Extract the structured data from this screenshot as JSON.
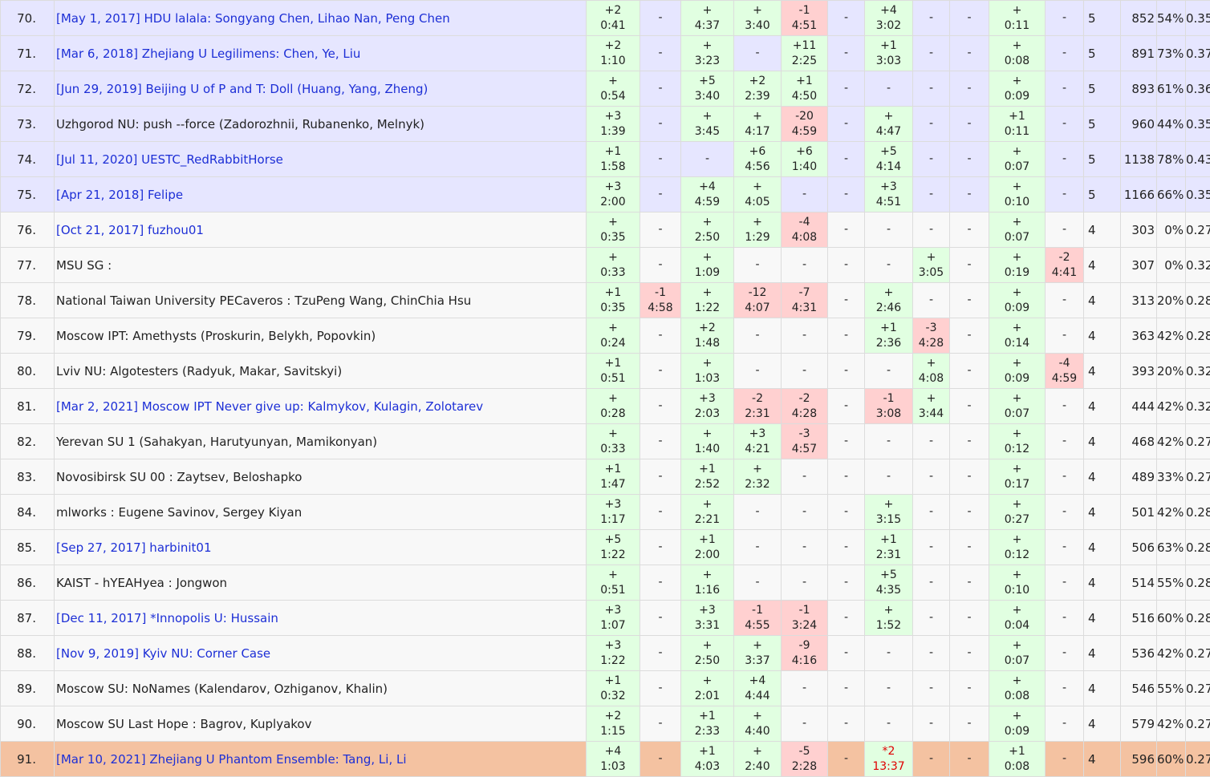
{
  "colors": {
    "link": "#1d2fd6",
    "accepted_bg": "#e1ffe1",
    "wrong_bg": "#ffd0d0",
    "pending_text": "#e00000",
    "past_virtual_row_bg": "#e6e6ff",
    "plain_row_bg": "#f8f8f8",
    "current_team_row_bg": "#f4c2a1"
  },
  "rows": [
    {
      "rank": "70.",
      "team": "[May 1, 2017] HDU lalala: Songyang Chen, Lihao Nan, Peng Chen",
      "link": true,
      "style": "hl",
      "problems": [
        [
          "+2",
          "0:41"
        ],
        [
          "-",
          ""
        ],
        [
          "+",
          "4:37"
        ],
        [
          "+",
          "3:40"
        ],
        [
          "-1",
          "4:51"
        ],
        [
          "-",
          ""
        ],
        [
          "+4",
          "3:02"
        ],
        [
          "-",
          ""
        ],
        [
          "-",
          ""
        ],
        [
          "+",
          "0:11"
        ],
        [
          "-",
          ""
        ]
      ],
      "solved": "5",
      "penalty": "852",
      "pct": "54%",
      "score": "0.35"
    },
    {
      "rank": "71.",
      "team": "[Mar 6, 2018] Zhejiang U Legilimens: Chen, Ye, Liu",
      "link": true,
      "style": "hl",
      "problems": [
        [
          "+2",
          "1:10"
        ],
        [
          "-",
          ""
        ],
        [
          "+",
          "3:23"
        ],
        [
          "-",
          ""
        ],
        [
          "+11",
          "2:25"
        ],
        [
          "-",
          ""
        ],
        [
          "+1",
          "3:03"
        ],
        [
          "-",
          ""
        ],
        [
          "-",
          ""
        ],
        [
          "+",
          "0:08"
        ],
        [
          "-",
          ""
        ]
      ],
      "solved": "5",
      "penalty": "891",
      "pct": "73%",
      "score": "0.37"
    },
    {
      "rank": "72.",
      "team": "[Jun 29, 2019] Beijing U of P and T: Doll (Huang, Yang, Zheng)",
      "link": true,
      "style": "hl",
      "problems": [
        [
          "+",
          "0:54"
        ],
        [
          "-",
          ""
        ],
        [
          "+5",
          "3:40"
        ],
        [
          "+2",
          "2:39"
        ],
        [
          "+1",
          "4:50"
        ],
        [
          "-",
          ""
        ],
        [
          "-",
          ""
        ],
        [
          "-",
          ""
        ],
        [
          "-",
          ""
        ],
        [
          "+",
          "0:09"
        ],
        [
          "-",
          ""
        ]
      ],
      "solved": "5",
      "penalty": "893",
      "pct": "61%",
      "score": "0.36"
    },
    {
      "rank": "73.",
      "team": "Uzhgorod NU: push --force (Zadorozhnii, Rubanenko, Melnyk)",
      "link": false,
      "style": "hl",
      "problems": [
        [
          "+3",
          "1:39"
        ],
        [
          "-",
          ""
        ],
        [
          "+",
          "3:45"
        ],
        [
          "+",
          "4:17"
        ],
        [
          "-20",
          "4:59"
        ],
        [
          "-",
          ""
        ],
        [
          "+",
          "4:47"
        ],
        [
          "-",
          ""
        ],
        [
          "-",
          ""
        ],
        [
          "+1",
          "0:11"
        ],
        [
          "-",
          ""
        ]
      ],
      "solved": "5",
      "penalty": "960",
      "pct": "44%",
      "score": "0.35"
    },
    {
      "rank": "74.",
      "team": "[Jul 11, 2020] UESTC_RedRabbitHorse",
      "link": true,
      "style": "hl",
      "problems": [
        [
          "+1",
          "1:58"
        ],
        [
          "-",
          ""
        ],
        [
          "-",
          ""
        ],
        [
          "+6",
          "4:56"
        ],
        [
          "+6",
          "1:40"
        ],
        [
          "-",
          ""
        ],
        [
          "+5",
          "4:14"
        ],
        [
          "-",
          ""
        ],
        [
          "-",
          ""
        ],
        [
          "+",
          "0:07"
        ],
        [
          "-",
          ""
        ]
      ],
      "solved": "5",
      "penalty": "1138",
      "pct": "78%",
      "score": "0.43"
    },
    {
      "rank": "75.",
      "team": "[Apr 21, 2018] Felipe",
      "link": true,
      "style": "hl",
      "problems": [
        [
          "+3",
          "2:00"
        ],
        [
          "-",
          ""
        ],
        [
          "+4",
          "4:59"
        ],
        [
          "+",
          "4:05"
        ],
        [
          "-",
          ""
        ],
        [
          "-",
          ""
        ],
        [
          "+3",
          "4:51"
        ],
        [
          "-",
          ""
        ],
        [
          "-",
          ""
        ],
        [
          "+",
          "0:10"
        ],
        [
          "-",
          ""
        ]
      ],
      "solved": "5",
      "penalty": "1166",
      "pct": "66%",
      "score": "0.35"
    },
    {
      "rank": "76.",
      "team": "[Oct 21, 2017] fuzhou01",
      "link": true,
      "style": "plain",
      "problems": [
        [
          "+",
          "0:35"
        ],
        [
          "-",
          ""
        ],
        [
          "+",
          "2:50"
        ],
        [
          "+",
          "1:29"
        ],
        [
          "-4",
          "4:08"
        ],
        [
          "-",
          ""
        ],
        [
          "-",
          ""
        ],
        [
          "-",
          ""
        ],
        [
          "-",
          ""
        ],
        [
          "+",
          "0:07"
        ],
        [
          "-",
          ""
        ]
      ],
      "solved": "4",
      "penalty": "303",
      "pct": "0%",
      "score": "0.27"
    },
    {
      "rank": "77.",
      "team": "MSU SG :",
      "link": false,
      "style": "plain",
      "problems": [
        [
          "+",
          "0:33"
        ],
        [
          "-",
          ""
        ],
        [
          "+",
          "1:09"
        ],
        [
          "-",
          ""
        ],
        [
          "-",
          ""
        ],
        [
          "-",
          ""
        ],
        [
          "-",
          ""
        ],
        [
          "+",
          "3:05"
        ],
        [
          "-",
          ""
        ],
        [
          "+",
          "0:19"
        ],
        [
          "-2",
          "4:41"
        ]
      ],
      "solved": "4",
      "penalty": "307",
      "pct": "0%",
      "score": "0.32"
    },
    {
      "rank": "78.",
      "team": "National Taiwan University PECaveros : TzuPeng Wang, ChinChia Hsu",
      "link": false,
      "style": "plain",
      "problems": [
        [
          "+1",
          "0:35"
        ],
        [
          "-1",
          "4:58"
        ],
        [
          "+",
          "1:22"
        ],
        [
          "-12",
          "4:07"
        ],
        [
          "-7",
          "4:31"
        ],
        [
          "-",
          ""
        ],
        [
          "+",
          "2:46"
        ],
        [
          "-",
          ""
        ],
        [
          "-",
          ""
        ],
        [
          "+",
          "0:09"
        ],
        [
          "-",
          ""
        ]
      ],
      "solved": "4",
      "penalty": "313",
      "pct": "20%",
      "score": "0.28"
    },
    {
      "rank": "79.",
      "team": "Moscow IPT: Amethysts (Proskurin, Belykh, Popovkin)",
      "link": false,
      "style": "plain",
      "problems": [
        [
          "+",
          "0:24"
        ],
        [
          "-",
          ""
        ],
        [
          "+2",
          "1:48"
        ],
        [
          "-",
          ""
        ],
        [
          "-",
          ""
        ],
        [
          "-",
          ""
        ],
        [
          "+1",
          "2:36"
        ],
        [
          "-3",
          "4:28"
        ],
        [
          "-",
          ""
        ],
        [
          "+",
          "0:14"
        ],
        [
          "-",
          ""
        ]
      ],
      "solved": "4",
      "penalty": "363",
      "pct": "42%",
      "score": "0.28"
    },
    {
      "rank": "80.",
      "team": "Lviv NU: Algotesters (Radyuk, Makar, Savitskyi)",
      "link": false,
      "style": "plain",
      "problems": [
        [
          "+1",
          "0:51"
        ],
        [
          "-",
          ""
        ],
        [
          "+",
          "1:03"
        ],
        [
          "-",
          ""
        ],
        [
          "-",
          ""
        ],
        [
          "-",
          ""
        ],
        [
          "-",
          ""
        ],
        [
          "+",
          "4:08"
        ],
        [
          "-",
          ""
        ],
        [
          "+",
          "0:09"
        ],
        [
          "-4",
          "4:59"
        ]
      ],
      "solved": "4",
      "penalty": "393",
      "pct": "20%",
      "score": "0.32"
    },
    {
      "rank": "81.",
      "team": "[Mar 2, 2021] Moscow IPT Never give up: Kalmykov, Kulagin, Zolotarev",
      "link": true,
      "style": "plain",
      "problems": [
        [
          "+",
          "0:28"
        ],
        [
          "-",
          ""
        ],
        [
          "+3",
          "2:03"
        ],
        [
          "-2",
          "2:31"
        ],
        [
          "-2",
          "4:28"
        ],
        [
          "-",
          ""
        ],
        [
          "-1",
          "3:08"
        ],
        [
          "+",
          "3:44"
        ],
        [
          "-",
          ""
        ],
        [
          "+",
          "0:07"
        ],
        [
          "-",
          ""
        ]
      ],
      "solved": "4",
      "penalty": "444",
      "pct": "42%",
      "score": "0.32"
    },
    {
      "rank": "82.",
      "team": "Yerevan SU 1 (Sahakyan, Harutyunyan, Mamikonyan)",
      "link": false,
      "style": "plain",
      "problems": [
        [
          "+",
          "0:33"
        ],
        [
          "-",
          ""
        ],
        [
          "+",
          "1:40"
        ],
        [
          "+3",
          "4:21"
        ],
        [
          "-3",
          "4:57"
        ],
        [
          "-",
          ""
        ],
        [
          "-",
          ""
        ],
        [
          "-",
          ""
        ],
        [
          "-",
          ""
        ],
        [
          "+",
          "0:12"
        ],
        [
          "-",
          ""
        ]
      ],
      "solved": "4",
      "penalty": "468",
      "pct": "42%",
      "score": "0.27"
    },
    {
      "rank": "83.",
      "team": "Novosibirsk SU 00 : Zaytsev, Beloshapko",
      "link": false,
      "style": "plain",
      "problems": [
        [
          "+1",
          "1:47"
        ],
        [
          "-",
          ""
        ],
        [
          "+1",
          "2:52"
        ],
        [
          "+",
          "2:32"
        ],
        [
          "-",
          ""
        ],
        [
          "-",
          ""
        ],
        [
          "-",
          ""
        ],
        [
          "-",
          ""
        ],
        [
          "-",
          ""
        ],
        [
          "+",
          "0:17"
        ],
        [
          "-",
          ""
        ]
      ],
      "solved": "4",
      "penalty": "489",
      "pct": "33%",
      "score": "0.27"
    },
    {
      "rank": "84.",
      "team": "mlworks : Eugene Savinov, Sergey Kiyan",
      "link": false,
      "style": "plain",
      "problems": [
        [
          "+3",
          "1:17"
        ],
        [
          "-",
          ""
        ],
        [
          "+",
          "2:21"
        ],
        [
          "-",
          ""
        ],
        [
          "-",
          ""
        ],
        [
          "-",
          ""
        ],
        [
          "+",
          "3:15"
        ],
        [
          "-",
          ""
        ],
        [
          "-",
          ""
        ],
        [
          "+",
          "0:27"
        ],
        [
          "-",
          ""
        ]
      ],
      "solved": "4",
      "penalty": "501",
      "pct": "42%",
      "score": "0.28"
    },
    {
      "rank": "85.",
      "team": "[Sep 27, 2017] harbinit01",
      "link": true,
      "style": "plain",
      "problems": [
        [
          "+5",
          "1:22"
        ],
        [
          "-",
          ""
        ],
        [
          "+1",
          "2:00"
        ],
        [
          "-",
          ""
        ],
        [
          "-",
          ""
        ],
        [
          "-",
          ""
        ],
        [
          "+1",
          "2:31"
        ],
        [
          "-",
          ""
        ],
        [
          "-",
          ""
        ],
        [
          "+",
          "0:12"
        ],
        [
          "-",
          ""
        ]
      ],
      "solved": "4",
      "penalty": "506",
      "pct": "63%",
      "score": "0.28"
    },
    {
      "rank": "86.",
      "team": "KAIST - hYEAHyea : Jongwon",
      "link": false,
      "style": "plain",
      "problems": [
        [
          "+",
          "0:51"
        ],
        [
          "-",
          ""
        ],
        [
          "+",
          "1:16"
        ],
        [
          "-",
          ""
        ],
        [
          "-",
          ""
        ],
        [
          "-",
          ""
        ],
        [
          "+5",
          "4:35"
        ],
        [
          "-",
          ""
        ],
        [
          "-",
          ""
        ],
        [
          "+",
          "0:10"
        ],
        [
          "-",
          ""
        ]
      ],
      "solved": "4",
      "penalty": "514",
      "pct": "55%",
      "score": "0.28"
    },
    {
      "rank": "87.",
      "team": "[Dec 11, 2017] *Innopolis U: Hussain",
      "link": true,
      "style": "plain",
      "problems": [
        [
          "+3",
          "1:07"
        ],
        [
          "-",
          ""
        ],
        [
          "+3",
          "3:31"
        ],
        [
          "-1",
          "4:55"
        ],
        [
          "-1",
          "3:24"
        ],
        [
          "-",
          ""
        ],
        [
          "+",
          "1:52"
        ],
        [
          "-",
          ""
        ],
        [
          "-",
          ""
        ],
        [
          "+",
          "0:04"
        ],
        [
          "-",
          ""
        ]
      ],
      "solved": "4",
      "penalty": "516",
      "pct": "60%",
      "score": "0.28"
    },
    {
      "rank": "88.",
      "team": "[Nov 9, 2019] Kyiv NU: Corner Case",
      "link": true,
      "style": "plain",
      "problems": [
        [
          "+3",
          "1:22"
        ],
        [
          "-",
          ""
        ],
        [
          "+",
          "2:50"
        ],
        [
          "+",
          "3:37"
        ],
        [
          "-9",
          "4:16"
        ],
        [
          "-",
          ""
        ],
        [
          "-",
          ""
        ],
        [
          "-",
          ""
        ],
        [
          "-",
          ""
        ],
        [
          "+",
          "0:07"
        ],
        [
          "-",
          ""
        ]
      ],
      "solved": "4",
      "penalty": "536",
      "pct": "42%",
      "score": "0.27"
    },
    {
      "rank": "89.",
      "team": "Moscow SU: NoNames (Kalendarov, Ozhiganov, Khalin)",
      "link": false,
      "style": "plain",
      "problems": [
        [
          "+1",
          "0:32"
        ],
        [
          "-",
          ""
        ],
        [
          "+",
          "2:01"
        ],
        [
          "+4",
          "4:44"
        ],
        [
          "-",
          ""
        ],
        [
          "-",
          ""
        ],
        [
          "-",
          ""
        ],
        [
          "-",
          ""
        ],
        [
          "-",
          ""
        ],
        [
          "+",
          "0:08"
        ],
        [
          "-",
          ""
        ]
      ],
      "solved": "4",
      "penalty": "546",
      "pct": "55%",
      "score": "0.27"
    },
    {
      "rank": "90.",
      "team": "Moscow SU Last Hope : Bagrov, Kuplyakov",
      "link": false,
      "style": "plain",
      "problems": [
        [
          "+2",
          "1:15"
        ],
        [
          "-",
          ""
        ],
        [
          "+1",
          "2:33"
        ],
        [
          "+",
          "4:40"
        ],
        [
          "-",
          ""
        ],
        [
          "-",
          ""
        ],
        [
          "-",
          ""
        ],
        [
          "-",
          ""
        ],
        [
          "-",
          ""
        ],
        [
          "+",
          "0:09"
        ],
        [
          "-",
          ""
        ]
      ],
      "solved": "4",
      "penalty": "579",
      "pct": "42%",
      "score": "0.27"
    },
    {
      "rank": "91.",
      "team": "[Mar 10, 2021] Zhejiang U Phantom Ensemble: Tang, Li, Li",
      "link": true,
      "style": "mine",
      "problems": [
        [
          "+4",
          "1:03"
        ],
        [
          "-",
          ""
        ],
        [
          "+1",
          "4:03"
        ],
        [
          "+",
          "2:40"
        ],
        [
          "-5",
          "2:28"
        ],
        [
          "-",
          ""
        ],
        [
          "*2",
          "13:37"
        ],
        [
          "-",
          ""
        ],
        [
          "-",
          ""
        ],
        [
          "+1",
          "0:08"
        ],
        [
          "-",
          ""
        ]
      ],
      "solved": "4",
      "penalty": "596",
      "pct": "60%",
      "score": "0.27"
    }
  ]
}
